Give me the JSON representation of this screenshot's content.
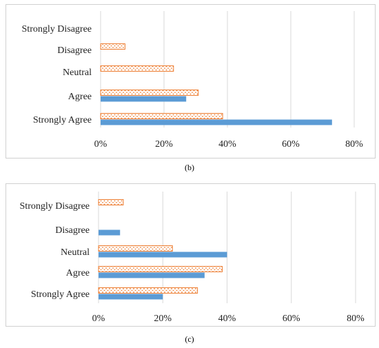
{
  "chart_data": [
    {
      "type": "bar",
      "orientation": "horizontal",
      "caption": "(b)",
      "categories": [
        "Strongly Disagree",
        "Disagree",
        "Neutral",
        "Agree",
        "Strongly Agree"
      ],
      "series": [
        {
          "values": [
            0,
            7.7,
            23,
            30.8,
            38.5
          ],
          "color": "#ED7D31",
          "fill": "dotted-pattern"
        },
        {
          "values": [
            0,
            0,
            0,
            27,
            73
          ],
          "color": "#5B9BD5",
          "fill": "solid"
        }
      ],
      "xlim": [
        0,
        80
      ],
      "xticks": [
        "0%",
        "20%",
        "40%",
        "60%",
        "80%"
      ],
      "grid": true,
      "legend": "none"
    },
    {
      "type": "bar",
      "orientation": "horizontal",
      "caption": "(c)",
      "categories": [
        "Strongly Disagree",
        "Disagree",
        "Neutral",
        "Agree",
        "Strongly Agree"
      ],
      "series": [
        {
          "values": [
            7.7,
            0,
            23,
            38.5,
            30.8
          ],
          "color": "#ED7D31",
          "fill": "dotted-pattern"
        },
        {
          "values": [
            0,
            6.7,
            40,
            33,
            20
          ],
          "color": "#5B9BD5",
          "fill": "solid"
        }
      ],
      "xlim": [
        0,
        80
      ],
      "xticks": [
        "0%",
        "20%",
        "40%",
        "60%",
        "80%"
      ],
      "grid": true,
      "legend": "none"
    }
  ]
}
